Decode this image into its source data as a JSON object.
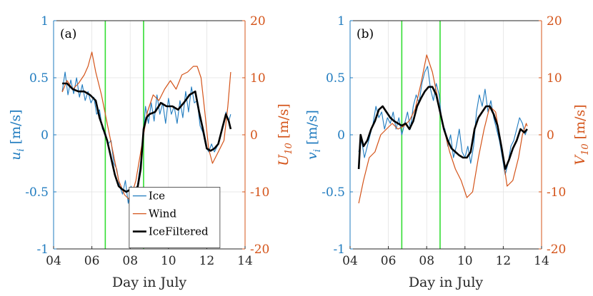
{
  "colors": {
    "ice": "#1f7bbf",
    "wind": "#d4541a",
    "filtered": "#000000",
    "marker": "#33dd33",
    "grid": "#e3e3e3",
    "axis": "#262626"
  },
  "chart_data": [
    {
      "type": "line",
      "panel_label": "(a)",
      "xlabel": "Day in July",
      "ylabel_left": "u_i [m/s]",
      "ylabel_left_main": "u",
      "ylabel_left_sub": "i",
      "ylabel_left_units": " [m/s]",
      "ylabel_right": "U_10 [m/s]",
      "ylabel_right_main": "U",
      "ylabel_right_sub": "10",
      "ylabel_right_units": " [m/s]",
      "xlim": [
        4,
        14
      ],
      "ylim_left": [
        -1,
        1
      ],
      "ylim_right": [
        -20,
        20
      ],
      "x_ticks": [
        4,
        6,
        8,
        10,
        12,
        14
      ],
      "x_tick_labels": [
        "04",
        "06",
        "08",
        "10",
        "12",
        "14"
      ],
      "y_ticks_left": [
        -1,
        -0.5,
        0,
        0.5,
        1
      ],
      "y_tick_labels_left": [
        "-1",
        "-0.5",
        "0",
        "0.5",
        "1"
      ],
      "y_ticks_right": [
        -20,
        -10,
        0,
        10,
        20
      ],
      "y_tick_labels_right": [
        "-20",
        "-10",
        "0",
        "10",
        "20"
      ],
      "vertical_markers": [
        6.7,
        8.7
      ],
      "legend": [
        "Ice",
        "Wind",
        "IceFiltered"
      ],
      "legend_position": "bottom-center",
      "series": [
        {
          "name": "Ice",
          "axis": "left",
          "x": [
            4.45,
            4.6,
            4.75,
            4.9,
            5.05,
            5.2,
            5.35,
            5.5,
            5.65,
            5.8,
            5.95,
            6.1,
            6.25,
            6.4,
            6.55,
            6.7,
            6.85,
            7.0,
            7.15,
            7.3,
            7.45,
            7.6,
            7.75,
            7.9,
            8.05,
            8.2,
            8.35,
            8.5,
            8.65,
            8.8,
            8.95,
            9.1,
            9.25,
            9.4,
            9.55,
            9.7,
            9.85,
            10.0,
            10.15,
            10.3,
            10.45,
            10.6,
            10.75,
            10.9,
            11.05,
            11.2,
            11.35,
            11.5,
            11.65,
            11.8,
            11.95,
            12.1,
            12.25,
            12.4,
            12.55,
            12.7,
            12.85,
            13.0,
            13.15,
            13.25
          ],
          "y": [
            0.38,
            0.55,
            0.35,
            0.48,
            0.36,
            0.5,
            0.33,
            0.44,
            0.3,
            0.38,
            0.28,
            0.33,
            0.18,
            0.22,
            0.05,
            0.02,
            -0.08,
            -0.05,
            -0.25,
            -0.3,
            -0.45,
            -0.52,
            -0.4,
            -0.6,
            -0.45,
            -0.68,
            -0.48,
            -0.3,
            -0.1,
            0.25,
            0.1,
            0.28,
            0.12,
            0.35,
            0.18,
            0.28,
            0.1,
            0.32,
            0.18,
            0.25,
            0.1,
            0.3,
            0.15,
            0.38,
            0.2,
            0.42,
            0.28,
            0.3,
            0.08,
            0.02,
            -0.1,
            -0.15,
            -0.08,
            -0.15,
            -0.1,
            -0.02,
            0.08,
            0.2,
            0.12,
            0.18
          ]
        },
        {
          "name": "Wind",
          "axis": "right",
          "x": [
            4.45,
            4.7,
            5.0,
            5.3,
            5.6,
            5.8,
            6.0,
            6.2,
            6.5,
            6.8,
            7.1,
            7.4,
            7.7,
            8.0,
            8.3,
            8.6,
            8.9,
            9.2,
            9.5,
            9.8,
            10.1,
            10.4,
            10.7,
            11.0,
            11.3,
            11.5,
            11.7,
            11.9,
            12.1,
            12.3,
            12.6,
            12.9,
            13.1,
            13.25
          ],
          "y": [
            7.5,
            9.5,
            8.0,
            9.0,
            10.5,
            12.0,
            14.5,
            11.0,
            7.0,
            2.0,
            -3.0,
            -8.0,
            -10.5,
            -11.5,
            -8.0,
            -2.0,
            4.0,
            7.0,
            6.0,
            8.0,
            9.5,
            8.0,
            10.5,
            11.0,
            12.0,
            12.0,
            10.0,
            4.0,
            -2.5,
            -5.0,
            -3.0,
            -1.0,
            5.0,
            11.0
          ]
        },
        {
          "name": "IceFiltered",
          "axis": "left",
          "x": [
            4.45,
            4.7,
            5.0,
            5.3,
            5.6,
            5.9,
            6.2,
            6.4,
            6.6,
            6.8,
            7.0,
            7.2,
            7.4,
            7.6,
            7.8,
            8.0,
            8.2,
            8.4,
            8.55,
            8.7,
            8.85,
            9.0,
            9.3,
            9.6,
            9.9,
            10.2,
            10.5,
            10.8,
            11.1,
            11.4,
            11.6,
            11.8,
            12.0,
            12.2,
            12.4,
            12.6,
            12.8,
            13.0,
            13.15,
            13.25
          ],
          "y": [
            0.45,
            0.45,
            0.4,
            0.38,
            0.38,
            0.35,
            0.3,
            0.15,
            0.05,
            -0.05,
            -0.2,
            -0.35,
            -0.45,
            -0.48,
            -0.5,
            -0.48,
            -0.5,
            -0.45,
            -0.3,
            0.05,
            0.15,
            0.18,
            0.2,
            0.28,
            0.25,
            0.25,
            0.22,
            0.28,
            0.35,
            0.38,
            0.2,
            0.05,
            -0.12,
            -0.14,
            -0.12,
            -0.08,
            0.05,
            0.18,
            0.12,
            0.05
          ]
        }
      ]
    },
    {
      "type": "line",
      "panel_label": "(b)",
      "xlabel": "Day in July",
      "ylabel_left": "v_i [m/s]",
      "ylabel_left_main": "v",
      "ylabel_left_sub": "i",
      "ylabel_left_units": " [m/s]",
      "ylabel_right": "V_10 [m/s]",
      "ylabel_right_main": "V",
      "ylabel_right_sub": "10",
      "ylabel_right_units": " [m/s]",
      "xlim": [
        4,
        14
      ],
      "ylim_left": [
        -1,
        1
      ],
      "ylim_right": [
        -20,
        20
      ],
      "x_ticks": [
        4,
        6,
        8,
        10,
        12,
        14
      ],
      "x_tick_labels": [
        "04",
        "06",
        "08",
        "10",
        "12",
        "14"
      ],
      "y_ticks_left": [
        -1,
        -0.5,
        0,
        0.5,
        1
      ],
      "y_tick_labels_left": [
        "-1",
        "-0.5",
        "0",
        "0.5",
        "1"
      ],
      "y_ticks_right": [
        -20,
        -10,
        0,
        10,
        20
      ],
      "y_tick_labels_right": [
        "-20",
        "-10",
        "0",
        "10",
        "20"
      ],
      "vertical_markers": [
        6.7,
        8.7
      ],
      "series": [
        {
          "name": "Ice",
          "axis": "left",
          "x": [
            4.45,
            4.6,
            4.75,
            4.9,
            5.05,
            5.2,
            5.35,
            5.5,
            5.65,
            5.8,
            5.95,
            6.1,
            6.25,
            6.4,
            6.55,
            6.7,
            6.85,
            7.0,
            7.15,
            7.3,
            7.45,
            7.6,
            7.75,
            7.9,
            8.05,
            8.2,
            8.35,
            8.5,
            8.65,
            8.8,
            8.95,
            9.1,
            9.25,
            9.4,
            9.55,
            9.7,
            9.85,
            10.0,
            10.15,
            10.3,
            10.45,
            10.6,
            10.75,
            10.9,
            11.05,
            11.2,
            11.35,
            11.5,
            11.65,
            11.8,
            11.95,
            12.1,
            12.25,
            12.4,
            12.55,
            12.7,
            12.85,
            13.0,
            13.15,
            13.25
          ],
          "y": [
            -0.15,
            -0.05,
            -0.2,
            -0.1,
            0.0,
            0.1,
            0.25,
            0.15,
            0.2,
            0.05,
            0.15,
            0.1,
            0.2,
            0.05,
            0.15,
            0.0,
            0.1,
            0.2,
            0.05,
            0.25,
            0.35,
            0.28,
            0.45,
            0.55,
            0.6,
            0.4,
            0.3,
            0.45,
            0.35,
            0.1,
            0.05,
            -0.1,
            0.0,
            -0.2,
            -0.1,
            0.05,
            -0.15,
            -0.2,
            -0.1,
            -0.25,
            -0.1,
            0.2,
            0.35,
            0.25,
            0.4,
            0.2,
            0.3,
            0.15,
            0.05,
            -0.05,
            -0.2,
            -0.35,
            -0.25,
            -0.1,
            -0.05,
            0.05,
            0.15,
            0.1,
            0.0,
            0.05
          ]
        },
        {
          "name": "Wind",
          "axis": "right",
          "x": [
            4.45,
            4.7,
            5.0,
            5.3,
            5.6,
            5.9,
            6.2,
            6.5,
            6.8,
            7.1,
            7.4,
            7.7,
            8.0,
            8.3,
            8.6,
            8.9,
            9.2,
            9.5,
            9.8,
            10.1,
            10.4,
            10.7,
            11.0,
            11.3,
            11.6,
            11.9,
            12.2,
            12.5,
            12.8,
            13.0,
            13.2,
            13.25
          ],
          "y": [
            -12.0,
            -8.0,
            -4.0,
            -3.0,
            0.0,
            1.0,
            2.0,
            1.0,
            1.5,
            2.5,
            4.5,
            9.0,
            14.0,
            11.0,
            6.0,
            1.0,
            -3.0,
            -6.0,
            -8.0,
            -11.0,
            -10.0,
            -4.0,
            1.0,
            5.0,
            4.0,
            -2.0,
            -9.0,
            -8.0,
            -4.0,
            0.0,
            2.0,
            1.5
          ]
        },
        {
          "name": "IceFiltered",
          "axis": "left",
          "x": [
            4.45,
            4.55,
            4.7,
            4.9,
            5.1,
            5.3,
            5.5,
            5.7,
            5.9,
            6.1,
            6.3,
            6.5,
            6.7,
            6.9,
            7.1,
            7.3,
            7.5,
            7.7,
            7.9,
            8.1,
            8.3,
            8.5,
            8.7,
            8.9,
            9.1,
            9.3,
            9.5,
            9.7,
            9.9,
            10.1,
            10.3,
            10.5,
            10.7,
            10.9,
            11.1,
            11.3,
            11.5,
            11.7,
            11.9,
            12.1,
            12.3,
            12.5,
            12.7,
            12.9,
            13.1,
            13.25
          ],
          "y": [
            -0.3,
            0.0,
            -0.1,
            -0.05,
            0.05,
            0.12,
            0.22,
            0.25,
            0.2,
            0.15,
            0.12,
            0.1,
            0.08,
            0.1,
            0.05,
            0.12,
            0.25,
            0.32,
            0.38,
            0.42,
            0.42,
            0.35,
            0.2,
            0.05,
            -0.05,
            -0.12,
            -0.15,
            -0.18,
            -0.2,
            -0.2,
            -0.15,
            0.05,
            0.15,
            0.2,
            0.25,
            0.25,
            0.18,
            0.08,
            -0.1,
            -0.3,
            -0.22,
            -0.12,
            -0.05,
            0.05,
            0.02,
            0.05
          ]
        }
      ]
    }
  ]
}
